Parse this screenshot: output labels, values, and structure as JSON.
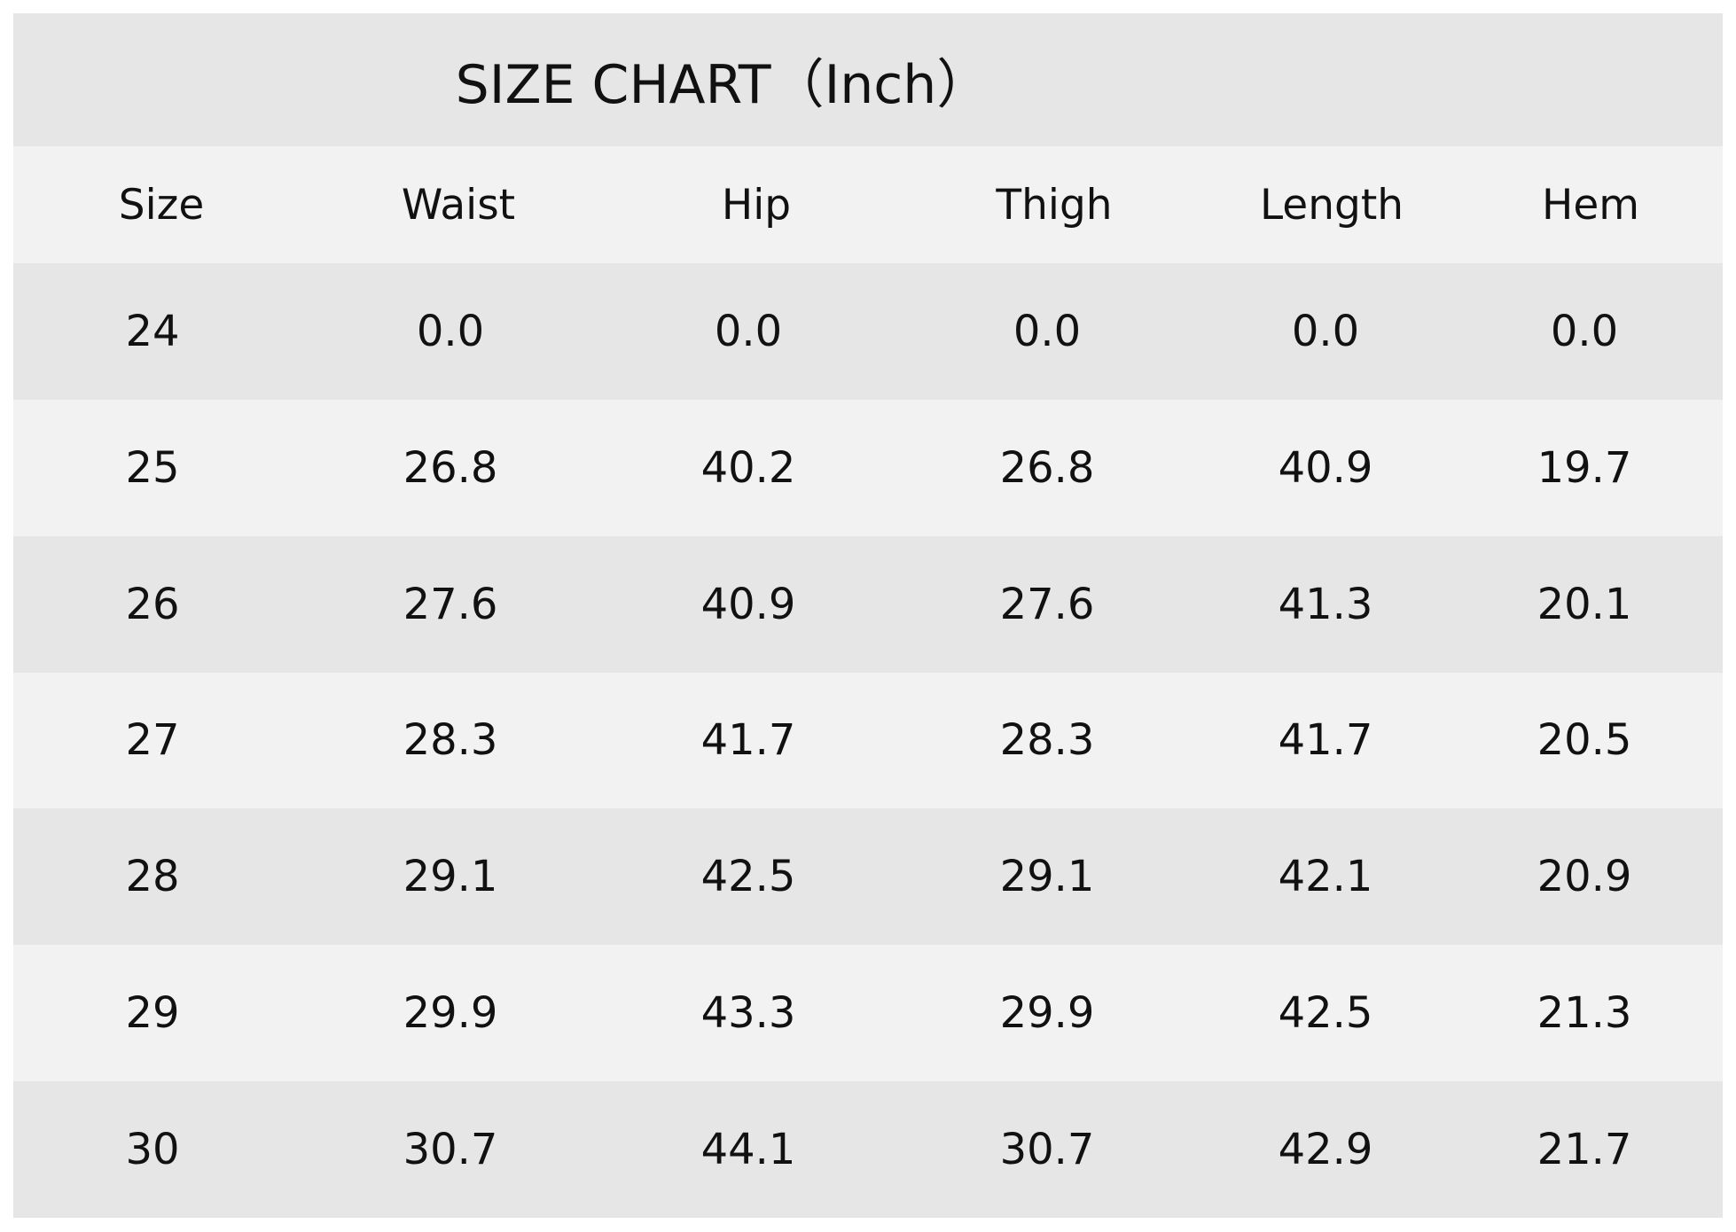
{
  "table": {
    "title": "SIZE CHART（Inch）",
    "header": [
      "Size",
      "Waist",
      "Hip",
      "Thigh",
      "Length",
      "Hem"
    ],
    "rows": [
      [
        "24",
        "0.0",
        "0.0",
        "0.0",
        "0.0",
        "0.0"
      ],
      [
        "25",
        "26.8",
        "40.2",
        "26.8",
        "40.9",
        "19.7"
      ],
      [
        "26",
        "27.6",
        "40.9",
        "27.6",
        "41.3",
        "20.1"
      ],
      [
        "27",
        "28.3",
        "41.7",
        "28.3",
        "41.7",
        "20.5"
      ],
      [
        "28",
        "29.1",
        "42.5",
        "29.1",
        "42.1",
        "20.9"
      ],
      [
        "29",
        "29.9",
        "43.3",
        "29.9",
        "42.5",
        "21.3"
      ],
      [
        "30",
        "30.7",
        "44.1",
        "30.7",
        "42.9",
        "21.7"
      ]
    ]
  }
}
